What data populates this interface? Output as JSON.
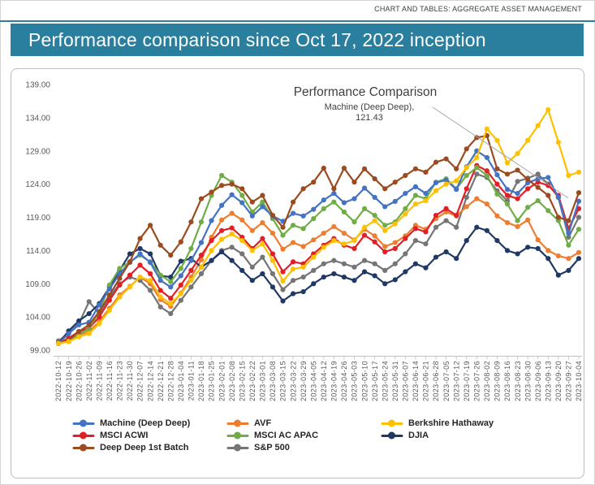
{
  "header": {
    "note": "CHART AND TABLES: AGGREGATE ASSET MANAGEMENT",
    "title": "Performance comparison since Oct 17, 2022 inception",
    "accent_color": "#2B7F9E"
  },
  "chart_data": {
    "type": "line",
    "title": "Performance Comparison",
    "annotation": {
      "label": "Machine (Deep  Deep),",
      "value": "121.43"
    },
    "ylim": [
      99,
      139
    ],
    "grid": false,
    "legend_position": "bottom",
    "x_label_rotation": -90,
    "yticks": [
      {
        "v": 139,
        "label": "139.00"
      },
      {
        "v": 134,
        "label": "134.00"
      },
      {
        "v": 129,
        "label": "129.00"
      },
      {
        "v": 124,
        "label": "124.00"
      },
      {
        "v": 119,
        "label": "119.00"
      },
      {
        "v": 114,
        "label": "114.00"
      },
      {
        "v": 109,
        "label": "109.00"
      },
      {
        "v": 104,
        "label": "104.00"
      },
      {
        "v": 99,
        "label": "99.00"
      }
    ],
    "x": [
      "2022-10-12",
      "2022-10-19",
      "2022-10-26",
      "2022-11-02",
      "2022-11-09",
      "2022-11-16",
      "2022-11-23",
      "2022-11-30",
      "2022-12-07",
      "2022-12-14",
      "2022-12-21",
      "2022-12-28",
      "2023-01-04",
      "2023-01-11",
      "2023-01-18",
      "2023-01-25",
      "2023-02-01",
      "2023-02-08",
      "2023-02-15",
      "2023-02-22",
      "2023-03-01",
      "2023-03-08",
      "2023-03-15",
      "2023-03-22",
      "2023-03-29",
      "2023-04-05",
      "2023-04-12",
      "2023-04-19",
      "2023-04-26",
      "2023-05-03",
      "2023-05-10",
      "2023-05-17",
      "2023-05-24",
      "2023-05-31",
      "2023-06-07",
      "2023-06-14",
      "2023-06-21",
      "2023-06-28",
      "2023-07-05",
      "2023-07-12",
      "2023-07-19",
      "2023-07-26",
      "2023-08-02",
      "2023-08-09",
      "2023-08-16",
      "2023-08-23",
      "2023-08-30",
      "2023-09-06",
      "2023-09-13",
      "2023-09-20",
      "2023-09-27",
      "2023-10-04"
    ],
    "series": [
      {
        "id": "machine-deep-deep",
        "name": "Machine (Deep  Deep)",
        "color": "#4472C4",
        "values": [
          100.0,
          101.5,
          102.8,
          103.2,
          105.8,
          108.2,
          110.5,
          112.2,
          113.5,
          112.2,
          109.5,
          108.5,
          110.2,
          112.5,
          115.2,
          118.5,
          120.8,
          122.4,
          121.2,
          119.2,
          120.6,
          119.2,
          118.4,
          119.6,
          119.2,
          120.2,
          121.6,
          122.6,
          121.2,
          121.8,
          123.4,
          122.0,
          120.6,
          121.4,
          122.6,
          123.6,
          122.6,
          124.2,
          124.6,
          123.2,
          126.6,
          129.0,
          128.0,
          125.4,
          123.2,
          122.6,
          124.2,
          124.8,
          125.0,
          122.0,
          116.6,
          121.43
        ]
      },
      {
        "id": "avf",
        "name": "AVF",
        "color": "#ED7D31",
        "values": [
          100.0,
          100.5,
          101.3,
          101.8,
          103.3,
          105.3,
          107.3,
          108.6,
          110.0,
          109.0,
          106.6,
          105.6,
          107.6,
          110.0,
          112.6,
          116.0,
          118.6,
          119.6,
          118.6,
          117.0,
          118.2,
          116.6,
          114.2,
          115.2,
          114.6,
          115.6,
          116.6,
          117.6,
          116.6,
          115.6,
          117.2,
          116.2,
          114.6,
          115.2,
          116.2,
          117.8,
          117.2,
          118.8,
          119.8,
          119.2,
          120.6,
          121.8,
          121.0,
          119.2,
          118.2,
          117.6,
          118.6,
          115.6,
          114.0,
          113.2,
          112.8,
          113.7
        ]
      },
      {
        "id": "berkshire-hathaway",
        "name": "Berkshire Hathaway",
        "color": "#FFC000",
        "values": [
          100.0,
          100.3,
          101.0,
          101.5,
          103.0,
          105.0,
          107.0,
          108.5,
          110.0,
          109.5,
          107.0,
          106.0,
          107.5,
          109.5,
          111.5,
          114.0,
          115.7,
          116.5,
          115.5,
          114.0,
          115.0,
          112.5,
          109.4,
          111.2,
          111.5,
          113.0,
          114.5,
          115.5,
          115.0,
          115.5,
          117.5,
          118.5,
          117.0,
          118.0,
          119.5,
          121.0,
          121.5,
          123.0,
          124.0,
          124.5,
          126.5,
          128.0,
          132.3,
          130.6,
          127.2,
          128.6,
          130.6,
          132.8,
          135.2,
          130.3,
          125.3,
          125.8
        ]
      },
      {
        "id": "msci-acwi",
        "name": "MSCI ACWI",
        "color": "#E21E26",
        "values": [
          100.0,
          100.8,
          101.8,
          102.3,
          104.0,
          106.5,
          108.8,
          110.3,
          111.8,
          110.5,
          108.0,
          106.8,
          108.8,
          111.0,
          113.3,
          115.5,
          117.0,
          117.4,
          116.0,
          114.3,
          115.8,
          113.5,
          110.8,
          112.3,
          112.0,
          113.5,
          114.8,
          115.8,
          114.8,
          114.3,
          116.3,
          115.3,
          113.8,
          114.3,
          115.8,
          117.3,
          116.8,
          119.3,
          120.3,
          119.3,
          123.3,
          126.8,
          126.0,
          124.0,
          122.3,
          121.8,
          123.3,
          124.3,
          123.8,
          122.3,
          117.3,
          120.3
        ]
      },
      {
        "id": "msci-ac-apac",
        "name": "MSCI AC APAC",
        "color": "#70AD47",
        "values": [
          100.0,
          100.3,
          101.3,
          102.3,
          104.8,
          108.8,
          111.3,
          112.3,
          113.3,
          112.3,
          110.3,
          109.3,
          111.3,
          114.3,
          118.3,
          122.3,
          125.3,
          124.3,
          122.3,
          119.8,
          121.3,
          118.8,
          116.3,
          117.8,
          117.3,
          118.8,
          120.3,
          121.3,
          119.8,
          118.3,
          120.3,
          119.3,
          117.8,
          118.3,
          120.3,
          122.3,
          121.8,
          124.3,
          124.8,
          123.3,
          125.3,
          126.5,
          125.3,
          122.5,
          121.0,
          118.5,
          120.5,
          121.5,
          120.0,
          118.5,
          114.8,
          117.2
        ]
      },
      {
        "id": "djia",
        "name": "DJIA",
        "color": "#1F3864",
        "values": [
          100.0,
          101.9,
          103.4,
          104.5,
          106.0,
          108.5,
          111.0,
          113.5,
          114.3,
          113.5,
          110.2,
          110.0,
          112.4,
          112.8,
          111.5,
          112.5,
          113.8,
          112.5,
          111.0,
          109.5,
          110.5,
          108.5,
          106.4,
          107.5,
          107.8,
          109.0,
          110.0,
          110.5,
          110.0,
          109.5,
          110.8,
          110.2,
          109.0,
          109.6,
          110.8,
          112.0,
          111.4,
          113.0,
          113.8,
          112.8,
          115.5,
          117.5,
          117.0,
          115.5,
          114.0,
          113.5,
          114.5,
          114.3,
          112.8,
          110.3,
          111.0,
          112.8
        ]
      },
      {
        "id": "deep-deep-1st-batch",
        "name": "Deep Deep 1st Batch",
        "color": "#9C4A1F",
        "values": [
          100.0,
          100.5,
          101.8,
          102.8,
          104.8,
          107.3,
          109.8,
          112.3,
          115.8,
          117.8,
          114.8,
          113.3,
          115.3,
          118.3,
          121.8,
          122.8,
          123.8,
          124.0,
          123.3,
          121.3,
          122.3,
          119.3,
          117.5,
          121.3,
          123.3,
          124.3,
          126.4,
          123.3,
          126.4,
          124.3,
          126.3,
          124.8,
          123.3,
          124.3,
          125.3,
          126.3,
          125.8,
          127.3,
          127.8,
          126.3,
          129.3,
          131.0,
          131.3,
          126.3,
          125.5,
          126.1,
          124.7,
          123.5,
          122.3,
          119.0,
          118.5,
          122.7
        ]
      },
      {
        "id": "sp-500",
        "name": "S&P 500",
        "color": "#757575",
        "values": [
          100.4,
          101.5,
          103.0,
          106.3,
          104.5,
          107.0,
          109.0,
          110.0,
          109.5,
          108.0,
          105.5,
          104.5,
          106.5,
          108.5,
          110.5,
          112.5,
          114.0,
          114.5,
          113.5,
          111.5,
          113.0,
          110.5,
          108.1,
          109.5,
          110.0,
          111.0,
          112.0,
          112.5,
          112.0,
          111.5,
          112.5,
          112.0,
          111.0,
          112.0,
          113.5,
          115.5,
          115.0,
          117.5,
          118.5,
          117.5,
          122.0,
          125.5,
          125.0,
          123.0,
          121.5,
          124.4,
          124.9,
          125.5,
          124.0,
          122.0,
          116.0,
          119.0
        ]
      }
    ],
    "draw_order": [
      7,
      1,
      5,
      3,
      4,
      0,
      6,
      2
    ]
  }
}
